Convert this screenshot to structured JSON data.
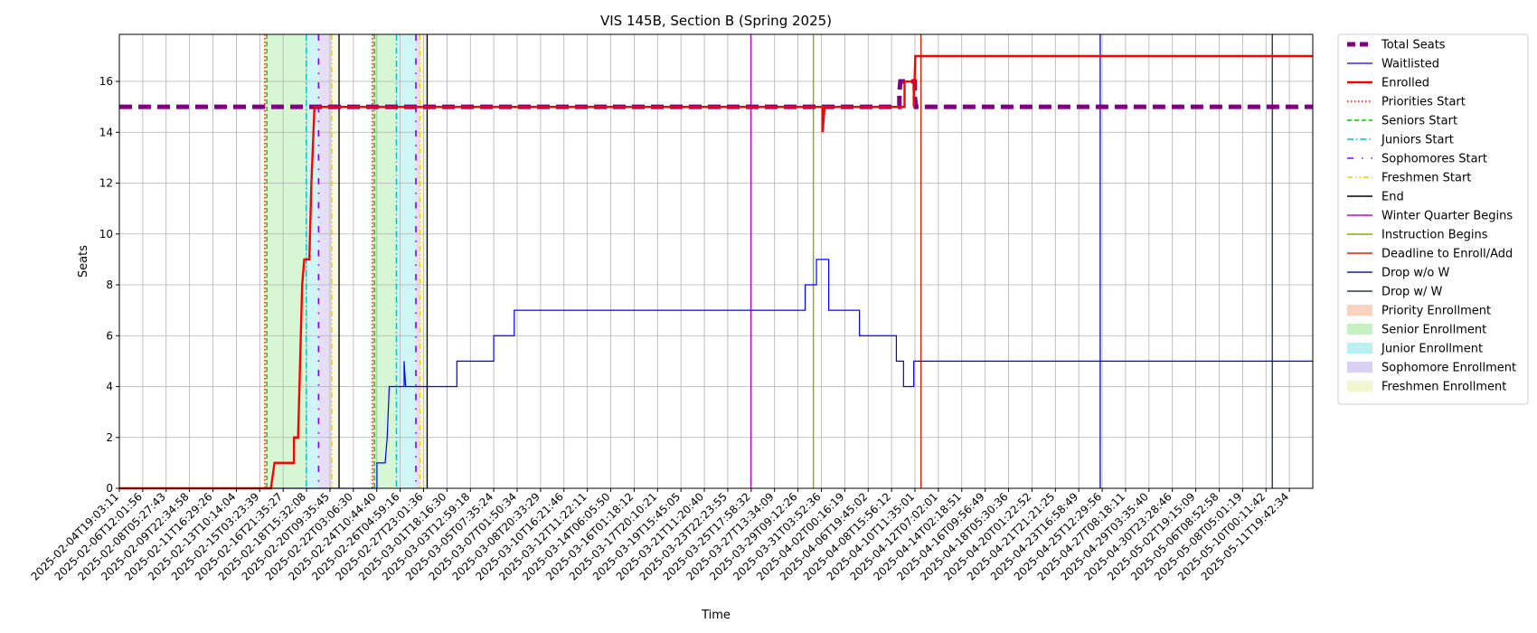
{
  "chart_data": {
    "type": "line",
    "title": "VIS 145B, Section B (Spring 2025)",
    "xlabel": "Time",
    "ylabel": "Seats",
    "ylim": [
      0,
      17.85
    ],
    "xlim": [
      "2025-02-04T19:03:11",
      "2025-05-12T21:00:00"
    ],
    "grid": true,
    "legend_position": "outside-right",
    "y_ticks": [
      0,
      2,
      4,
      6,
      8,
      10,
      12,
      14,
      16
    ],
    "x_tick_labels": [
      "2025-02-04T19:03:11",
      "2025-02-06T12:01:56",
      "2025-02-08T05:27:43",
      "2025-02-09T22:34:58",
      "2025-02-11T16:29:26",
      "2025-02-13T10:14:04",
      "2025-02-15T03:23:39",
      "2025-02-16T21:35:27",
      "2025-02-18T15:32:08",
      "2025-02-20T09:35:45",
      "2025-02-22T03:06:30",
      "2025-02-24T10:44:40",
      "2025-02-26T04:59:16",
      "2025-02-27T23:01:36",
      "2025-03-01T18:16:30",
      "2025-03-03T12:59:18",
      "2025-03-05T07:35:24",
      "2025-03-07T01:50:34",
      "2025-03-08T20:33:29",
      "2025-03-10T16:21:46",
      "2025-03-12T11:22:11",
      "2025-03-14T06:05:50",
      "2025-03-16T01:18:12",
      "2025-03-17T20:10:21",
      "2025-03-19T15:45:05",
      "2025-03-21T11:20:40",
      "2025-03-23T22:23:55",
      "2025-03-25T17:58:32",
      "2025-03-27T13:34:09",
      "2025-03-29T09:12:26",
      "2025-03-31T03:52:36",
      "2025-04-02T00:16:19",
      "2025-04-06T19:45:02",
      "2025-04-08T15:56:12",
      "2025-04-10T11:35:01",
      "2025-04-12T07:02:01",
      "2025-04-14T02:18:51",
      "2025-04-16T09:56:49",
      "2025-04-18T05:30:36",
      "2025-04-20T01:22:52",
      "2025-04-21T21:21:25",
      "2025-04-23T16:58:49",
      "2025-04-25T12:29:56",
      "2025-04-27T08:18:11",
      "2025-04-29T03:35:40",
      "2025-04-30T23:28:46",
      "2025-05-02T19:15:09",
      "2025-05-06T08:52:58",
      "2025-05-08T05:01:19",
      "2025-05-10T00:11:42",
      "2025-05-11T19:42:34"
    ],
    "series": [
      {
        "name": "Total Seats",
        "color": "#800080",
        "style": "dashed-thick",
        "points": [
          [
            "2025-02-04T19:03:11",
            15
          ],
          [
            "2025-04-09T06:00:00",
            15
          ],
          [
            "2025-04-09T06:00:00",
            15.6
          ],
          [
            "2025-04-09T08:00:00",
            16
          ],
          [
            "2025-04-10T12:00:00",
            16
          ],
          [
            "2025-04-10T12:00:00",
            15.4
          ],
          [
            "2025-04-10T14:00:00",
            15
          ],
          [
            "2025-05-12T21:00:00",
            15
          ]
        ]
      },
      {
        "name": "Waitlisted",
        "color": "#0000ff",
        "style": "solid-thin",
        "points": [
          [
            "2025-02-04T19:03:11",
            0
          ],
          [
            "2025-02-25T18:00:00",
            0
          ],
          [
            "2025-02-25T18:00:00",
            1
          ],
          [
            "2025-02-26T10:00:00",
            1
          ],
          [
            "2025-02-26T14:00:00",
            2
          ],
          [
            "2025-02-26T18:00:00",
            4
          ],
          [
            "2025-02-27T23:01:36",
            4
          ],
          [
            "2025-02-27T23:01:36",
            5
          ],
          [
            "2025-02-28T02:00:00",
            4
          ],
          [
            "2025-03-04T06:00:00",
            4
          ],
          [
            "2025-03-04T06:00:00",
            5
          ],
          [
            "2025-03-07T06:00:00",
            5
          ],
          [
            "2025-03-07T06:00:00",
            6
          ],
          [
            "2025-03-08T22:00:00",
            6
          ],
          [
            "2025-03-08T22:00:00",
            7
          ],
          [
            "2025-04-01T14:00:00",
            7
          ],
          [
            "2025-04-01T14:00:00",
            8
          ],
          [
            "2025-04-02T12:00:00",
            8
          ],
          [
            "2025-04-02T12:00:00",
            9
          ],
          [
            "2025-04-03T12:00:00",
            9
          ],
          [
            "2025-04-03T12:00:00",
            7
          ],
          [
            "2025-04-06T00:00:00",
            7
          ],
          [
            "2025-04-06T00:00:00",
            6
          ],
          [
            "2025-04-09T00:00:00",
            6
          ],
          [
            "2025-04-09T00:00:00",
            5
          ],
          [
            "2025-04-09T14:00:00",
            5
          ],
          [
            "2025-04-09T14:00:00",
            4
          ],
          [
            "2025-04-10T10:00:00",
            4
          ],
          [
            "2025-04-10T10:00:00",
            5
          ],
          [
            "2025-05-12T21:00:00",
            5
          ]
        ]
      },
      {
        "name": "Enrolled",
        "color": "#ff0000",
        "style": "solid-thick",
        "points": [
          [
            "2025-02-04T19:03:11",
            0
          ],
          [
            "2025-02-17T03:00:00",
            0
          ],
          [
            "2025-02-17T10:00:00",
            1
          ],
          [
            "2025-02-19T00:00:00",
            1
          ],
          [
            "2025-02-19T00:00:00",
            2
          ],
          [
            "2025-02-19T08:00:00",
            2
          ],
          [
            "2025-02-19T12:00:00",
            5
          ],
          [
            "2025-02-19T16:00:00",
            8
          ],
          [
            "2025-02-19T20:00:00",
            9
          ],
          [
            "2025-02-20T06:00:00",
            9
          ],
          [
            "2025-02-20T10:00:00",
            12
          ],
          [
            "2025-02-20T16:00:00",
            15
          ],
          [
            "2025-04-03T00:00:00",
            15
          ],
          [
            "2025-04-03T00:00:00",
            14
          ],
          [
            "2025-04-03T04:00:00",
            15
          ],
          [
            "2025-04-09T16:00:00",
            15
          ],
          [
            "2025-04-09T16:00:00",
            16
          ],
          [
            "2025-04-10T10:00:00",
            16
          ],
          [
            "2025-04-10T10:00:00",
            15
          ],
          [
            "2025-04-10T13:00:00",
            17
          ],
          [
            "2025-05-12T21:00:00",
            17
          ]
        ]
      }
    ],
    "vertical_lines": [
      {
        "name": "Priorities Start",
        "color": "#ff0000",
        "style": "dotted",
        "x": [
          "2025-02-16T15:00:00",
          "2025-02-25T09:00:00"
        ]
      },
      {
        "name": "Seniors Start",
        "color": "#00cc00",
        "style": "dashed",
        "x": [
          "2025-02-16T19:00:00",
          "2025-02-25T13:00:00"
        ]
      },
      {
        "name": "Juniors Start",
        "color": "#00bfbf",
        "style": "dashdot",
        "x": [
          "2025-02-20T00:00:00",
          "2025-02-27T08:00:00"
        ]
      },
      {
        "name": "Sophomores Start",
        "color": "#7f00ff",
        "style": "dashdot-sparse",
        "x": [
          "2025-02-21T00:00:00",
          "2025-02-28T22:00:00"
        ]
      },
      {
        "name": "Freshmen Start",
        "color": "#e6d200",
        "style": "dashdotdot",
        "x": [
          "2025-02-22T02:00:00",
          "2025-03-01T06:00:00"
        ]
      },
      {
        "name": "End",
        "color": "#000000",
        "style": "solid",
        "x": [
          "2025-02-22T16:00:00",
          "2025-03-01T20:00:00"
        ]
      },
      {
        "name": "Winter Quarter Begins",
        "color": "#cc00cc",
        "style": "solid",
        "x": [
          "2025-03-28T04:00:00"
        ]
      },
      {
        "name": "Instruction Begins",
        "color": "#80b000",
        "style": "solid",
        "x": [
          "2025-04-02T06:00:00"
        ]
      },
      {
        "name": "Deadline to Enroll/Add",
        "color": "#dd2200",
        "style": "solid",
        "x": [
          "2025-04-11T00:00:00"
        ]
      },
      {
        "name": "Drop w/o W",
        "color": "#1a1aaa",
        "style": "solid",
        "x": [
          "2025-04-25T14:00:00"
        ]
      },
      {
        "name": "Drop w/ W",
        "color": "#2a3a4a",
        "style": "solid",
        "x": [
          "2025-05-09T14:00:00"
        ]
      }
    ],
    "shaded_regions": [
      {
        "name": "Priority Enrollment",
        "color": "#f5c8b0",
        "ranges": [
          [
            "2025-02-16T15:00:00",
            "2025-02-16T19:00:00"
          ],
          [
            "2025-02-25T09:00:00",
            "2025-02-25T13:00:00"
          ]
        ]
      },
      {
        "name": "Senior Enrollment",
        "color": "#b6efb0",
        "ranges": [
          [
            "2025-02-16T19:00:00",
            "2025-02-20T00:00:00"
          ],
          [
            "2025-02-25T13:00:00",
            "2025-02-27T08:00:00"
          ]
        ]
      },
      {
        "name": "Junior Enrollment",
        "color": "#a8ecec",
        "ranges": [
          [
            "2025-02-20T00:00:00",
            "2025-02-21T00:00:00"
          ],
          [
            "2025-02-27T08:00:00",
            "2025-02-28T22:00:00"
          ]
        ]
      },
      {
        "name": "Sophomore Enrollment",
        "color": "#d2c3f0",
        "ranges": [
          [
            "2025-02-21T00:00:00",
            "2025-02-22T02:00:00"
          ],
          [
            "2025-02-28T22:00:00",
            "2025-03-01T06:00:00"
          ]
        ]
      },
      {
        "name": "Freshmen Enrollment",
        "color": "#f3f3c4",
        "ranges": [
          [
            "2025-02-22T02:00:00",
            "2025-02-22T16:00:00"
          ],
          [
            "2025-03-01T06:00:00",
            "2025-03-01T20:00:00"
          ]
        ]
      }
    ],
    "legend": [
      {
        "label": "Total Seats",
        "kind": "line",
        "color": "#800080",
        "style": "dashed-thick"
      },
      {
        "label": "Waitlisted",
        "kind": "line",
        "color": "#0000ff",
        "style": "solid-thin"
      },
      {
        "label": "Enrolled",
        "kind": "line",
        "color": "#ff0000",
        "style": "solid-thick"
      },
      {
        "label": "Priorities Start",
        "kind": "line",
        "color": "#ff0000",
        "style": "dotted"
      },
      {
        "label": "Seniors Start",
        "kind": "line",
        "color": "#00cc00",
        "style": "dashed"
      },
      {
        "label": "Juniors Start",
        "kind": "line",
        "color": "#00bfbf",
        "style": "dashdot"
      },
      {
        "label": "Sophomores Start",
        "kind": "line",
        "color": "#7f00ff",
        "style": "dashdot-sparse"
      },
      {
        "label": "Freshmen Start",
        "kind": "line",
        "color": "#e6d200",
        "style": "dashdotdot"
      },
      {
        "label": "End",
        "kind": "line",
        "color": "#000000",
        "style": "solid"
      },
      {
        "label": "Winter Quarter Begins",
        "kind": "line",
        "color": "#cc00cc",
        "style": "solid"
      },
      {
        "label": "Instruction Begins",
        "kind": "line",
        "color": "#80b000",
        "style": "solid"
      },
      {
        "label": "Deadline to Enroll/Add",
        "kind": "line",
        "color": "#dd2200",
        "style": "solid"
      },
      {
        "label": "Drop w/o W",
        "kind": "line",
        "color": "#1a1aaa",
        "style": "solid"
      },
      {
        "label": "Drop w/ W",
        "kind": "line",
        "color": "#2a3a4a",
        "style": "solid"
      },
      {
        "label": "Priority Enrollment",
        "kind": "patch",
        "color": "#f5c8b0"
      },
      {
        "label": "Senior Enrollment",
        "kind": "patch",
        "color": "#b6efb0"
      },
      {
        "label": "Junior Enrollment",
        "kind": "patch",
        "color": "#a8ecec"
      },
      {
        "label": "Sophomore Enrollment",
        "kind": "patch",
        "color": "#d2c3f0"
      },
      {
        "label": "Freshmen Enrollment",
        "kind": "patch",
        "color": "#f3f3c4"
      }
    ]
  }
}
